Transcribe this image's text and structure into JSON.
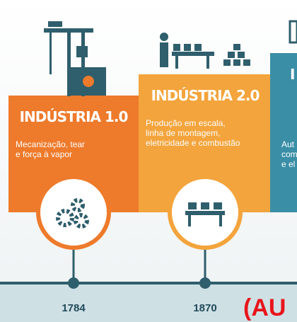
{
  "cards": [
    {
      "title": "INDÚSTRIA 1.0",
      "description": [
        "Mecanização, tear",
        "e força à vapor"
      ],
      "year": "1784"
    },
    {
      "title": "INDÚSTRIA 2.0",
      "description": [
        "Produção em escala,",
        "linha de montagem,",
        "eletricidade e combustão"
      ],
      "year": "1870"
    },
    {
      "title": "I",
      "description": [
        "Aut",
        "com",
        "e el"
      ]
    }
  ],
  "overlay_text": "(AU"
}
